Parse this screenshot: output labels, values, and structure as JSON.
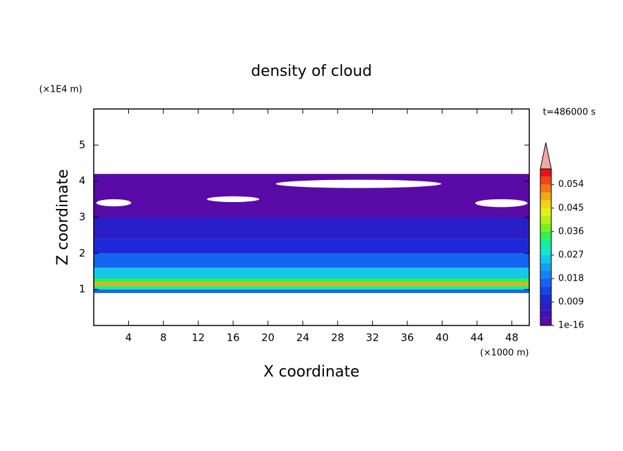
{
  "chart_data": {
    "type": "contour",
    "title": "density of cloud",
    "x_label": "X coordinate",
    "y_label": "Z coordinate",
    "x_unit": "(×1000 m)",
    "y_unit": "(×1E4 m)",
    "time_label": "t=486000 s",
    "xlim": [
      0,
      50
    ],
    "ylim": [
      0,
      6
    ],
    "xticks": [
      4,
      8,
      12,
      16,
      20,
      24,
      28,
      32,
      36,
      40,
      44,
      48
    ],
    "yticks": [
      1,
      2,
      3,
      4,
      5
    ],
    "z_edges": [
      0.9,
      1.0,
      1.1,
      1.2,
      1.3,
      1.6,
      2.0,
      2.4,
      3.0,
      4.2
    ],
    "values": [
      0.015,
      0.03,
      0.05,
      0.033,
      0.024,
      0.016,
      0.01,
      0.006,
      0.002
    ],
    "clear_regions": [
      {
        "x": [
          0.3,
          4.3
        ],
        "z": [
          3.3,
          3.5
        ]
      },
      {
        "x": [
          13,
          19
        ],
        "z": [
          3.42,
          3.58
        ]
      },
      {
        "x": [
          20.9,
          39.9
        ],
        "z": [
          3.81,
          4.04
        ]
      },
      {
        "x": [
          43.8,
          49.8
        ],
        "z": [
          3.28,
          3.5
        ]
      }
    ],
    "colorbar_lim": [
      0,
      0.06
    ],
    "colorbar_ticks": [
      1e-16,
      0.009,
      0.018,
      0.027,
      0.036,
      0.045,
      0.054
    ],
    "colors": [
      "#5a0aa6",
      "#3c14b4",
      "#2a1ec8",
      "#1e28d8",
      "#1446e6",
      "#1464f0",
      "#1482f4",
      "#14a0f0",
      "#14c8e6",
      "#14e6c8",
      "#14f096",
      "#32f050",
      "#78f01e",
      "#b4f014",
      "#e6f014",
      "#f0d214",
      "#f0aa14",
      "#f07814",
      "#f04614",
      "#e61414"
    ],
    "extend_color": "#f0a8a8"
  }
}
